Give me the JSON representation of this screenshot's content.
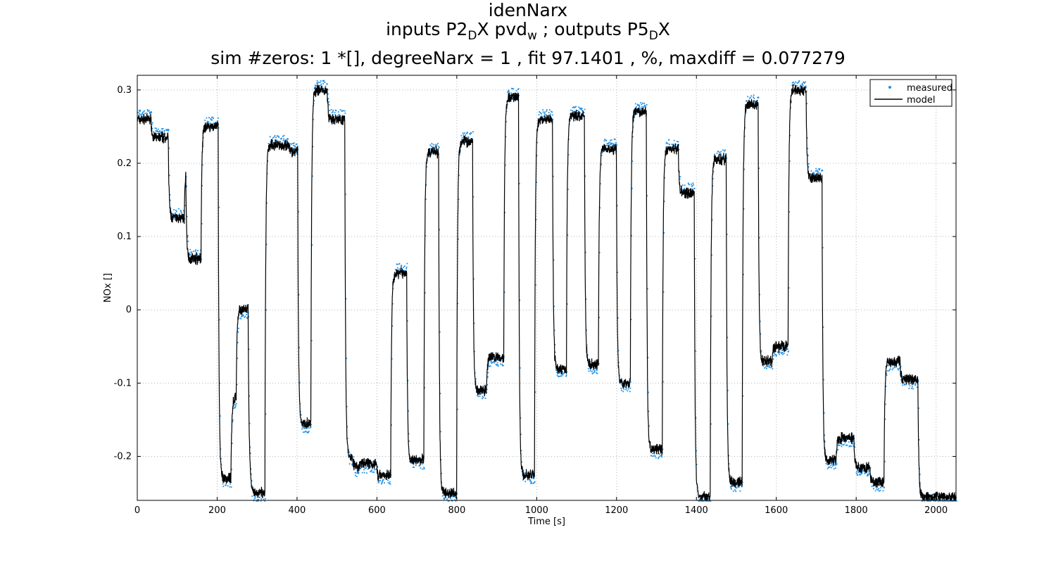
{
  "figure": {
    "title_line1": "idenNarx",
    "title_line2": {
      "p1": "inputs P2",
      "s1": "D",
      "p2": "X pvd",
      "s2": "w",
      "p3": " ; outputs P5",
      "s3": "D",
      "p4": "X"
    },
    "title_line3": "sim #zeros:  1 *[], degreeNarx =  1 , fit  97.1401 , %, maxdiff =  0.077279"
  },
  "chart_data": {
    "type": "line",
    "xlabel": "Time [s]",
    "ylabel": "NOx  []",
    "xlim": [
      0,
      2050
    ],
    "ylim": [
      -0.26,
      0.32
    ],
    "xticks": [
      0,
      200,
      400,
      600,
      800,
      1000,
      1200,
      1400,
      1600,
      1800,
      2000
    ],
    "xtick_labels": [
      "0",
      "200",
      "400",
      "600",
      "800",
      "1000",
      "1200",
      "1400",
      "1600",
      "1800",
      "2000"
    ],
    "yticks": [
      -0.2,
      -0.1,
      0,
      0.1,
      0.2,
      0.3
    ],
    "ytick_labels": [
      "-0.2",
      "-0.1",
      "0",
      "0.1",
      "0.2",
      "0.3"
    ],
    "grid": true,
    "legend_position": "top-right",
    "series": [
      {
        "name": "measured",
        "style": "dots",
        "color": "#1e90e6"
      },
      {
        "name": "model",
        "style": "line",
        "color": "#000000"
      }
    ],
    "segments": [
      [
        0,
        0.26
      ],
      [
        35,
        0.235
      ],
      [
        78,
        0.125
      ],
      [
        118,
        0.19
      ],
      [
        122,
        0.07
      ],
      [
        160,
        0.25
      ],
      [
        203,
        -0.23
      ],
      [
        235,
        -0.12
      ],
      [
        248,
        0.0
      ],
      [
        278,
        -0.22
      ],
      [
        283,
        -0.25
      ],
      [
        320,
        0.225
      ],
      [
        360,
        0.225
      ],
      [
        380,
        0.215
      ],
      [
        402,
        -0.155
      ],
      [
        435,
        0.3
      ],
      [
        476,
        0.26
      ],
      [
        520,
        -0.2
      ],
      [
        540,
        -0.215
      ],
      [
        555,
        -0.21
      ],
      [
        600,
        -0.23
      ],
      [
        605,
        -0.225
      ],
      [
        635,
        0.05
      ],
      [
        675,
        -0.205
      ],
      [
        718,
        0.215
      ],
      [
        755,
        -0.25
      ],
      [
        800,
        0.23
      ],
      [
        840,
        -0.11
      ],
      [
        875,
        -0.065
      ],
      [
        918,
        0.29
      ],
      [
        955,
        -0.225
      ],
      [
        995,
        0.26
      ],
      [
        1040,
        -0.08
      ],
      [
        1075,
        0.265
      ],
      [
        1120,
        -0.075
      ],
      [
        1155,
        0.22
      ],
      [
        1200,
        -0.1
      ],
      [
        1235,
        0.27
      ],
      [
        1275,
        -0.19
      ],
      [
        1315,
        0.22
      ],
      [
        1355,
        0.16
      ],
      [
        1395,
        -0.255
      ],
      [
        1435,
        0.205
      ],
      [
        1475,
        -0.235
      ],
      [
        1515,
        0.28
      ],
      [
        1555,
        -0.07
      ],
      [
        1590,
        -0.05
      ],
      [
        1630,
        0.3
      ],
      [
        1675,
        0.18
      ],
      [
        1715,
        -0.205
      ],
      [
        1750,
        -0.175
      ],
      [
        1795,
        -0.215
      ],
      [
        1835,
        -0.235
      ],
      [
        1870,
        -0.07
      ],
      [
        1910,
        -0.095
      ],
      [
        1955,
        -0.255
      ],
      [
        2050,
        -0.25
      ]
    ]
  }
}
